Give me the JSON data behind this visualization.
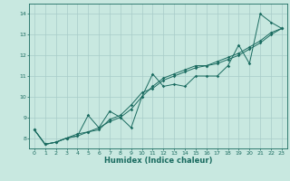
{
  "xlabel": "Humidex (Indice chaleur)",
  "ylabel": "",
  "bg_color": "#c8e8e0",
  "grid_color": "#a8ccc8",
  "line_color": "#1a6b60",
  "xlim": [
    -0.5,
    23.5
  ],
  "ylim": [
    7.5,
    14.5
  ],
  "yticks": [
    8,
    9,
    10,
    11,
    12,
    13,
    14
  ],
  "xticks": [
    0,
    1,
    2,
    3,
    4,
    5,
    6,
    7,
    8,
    9,
    10,
    11,
    12,
    13,
    14,
    15,
    16,
    17,
    18,
    19,
    20,
    21,
    22,
    23
  ],
  "line1_x": [
    0,
    1,
    2,
    3,
    4,
    5,
    6,
    7,
    8,
    9,
    10,
    11,
    12,
    13,
    14,
    15,
    16,
    17,
    18,
    19,
    20,
    21,
    22,
    23
  ],
  "line1_y": [
    8.4,
    7.7,
    7.8,
    8.0,
    8.1,
    9.1,
    8.5,
    9.3,
    9.0,
    8.5,
    10.0,
    11.1,
    10.5,
    10.6,
    10.5,
    11.0,
    11.0,
    11.0,
    11.5,
    12.5,
    11.6,
    14.0,
    13.6,
    13.3
  ],
  "line2_x": [
    0,
    1,
    2,
    3,
    4,
    5,
    6,
    7,
    8,
    9,
    10,
    11,
    12,
    13,
    14,
    15,
    16,
    17,
    18,
    19,
    20,
    21,
    22,
    23
  ],
  "line2_y": [
    8.4,
    7.7,
    7.8,
    8.0,
    8.2,
    8.3,
    8.4,
    8.9,
    9.1,
    9.6,
    10.2,
    10.4,
    10.8,
    11.0,
    11.2,
    11.4,
    11.5,
    11.6,
    11.8,
    12.0,
    12.3,
    12.6,
    13.0,
    13.3
  ],
  "line3_x": [
    0,
    1,
    2,
    3,
    4,
    5,
    6,
    7,
    8,
    9,
    10,
    11,
    12,
    13,
    14,
    15,
    16,
    17,
    18,
    19,
    20,
    21,
    22,
    23
  ],
  "line3_y": [
    8.4,
    7.7,
    7.8,
    8.0,
    8.1,
    8.3,
    8.5,
    8.8,
    9.0,
    9.4,
    10.0,
    10.5,
    10.9,
    11.1,
    11.3,
    11.5,
    11.5,
    11.7,
    11.9,
    12.1,
    12.4,
    12.7,
    13.1,
    13.3
  ]
}
